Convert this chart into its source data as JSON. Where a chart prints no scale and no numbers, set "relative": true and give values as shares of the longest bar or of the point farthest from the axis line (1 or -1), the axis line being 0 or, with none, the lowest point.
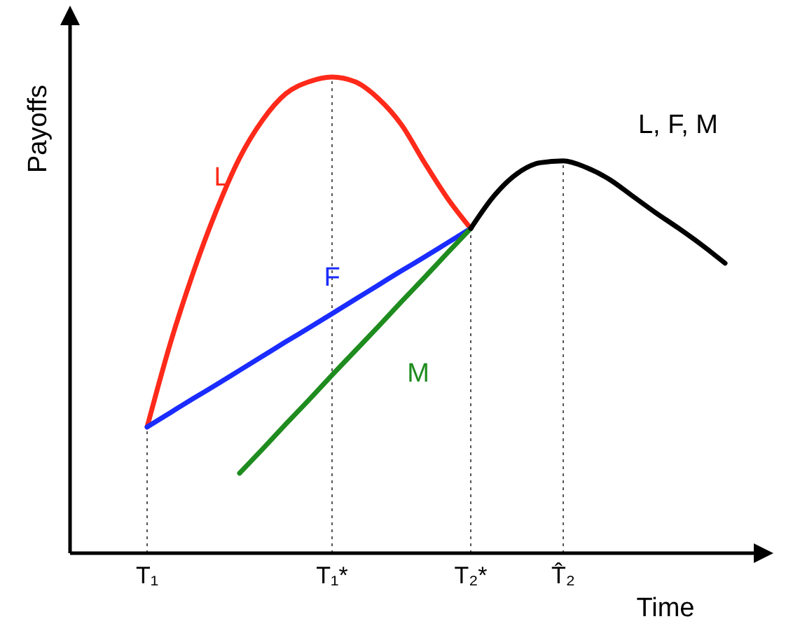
{
  "chart_data": {
    "type": "line",
    "relative": true,
    "xlabel": "Time",
    "ylabel": "Payoffs",
    "tick_labels": "x",
    "categories": [
      "T₁",
      null,
      null,
      null,
      null,
      null,
      null,
      null,
      "T₁*",
      null,
      null,
      null,
      null,
      null,
      "T₂*",
      null,
      null,
      null,
      "T̂₂",
      null,
      null,
      null,
      null,
      null,
      null,
      null
    ],
    "line_style": "solid",
    "marker": "none",
    "series": [
      {
        "name": "L",
        "color": "#ff2a1a",
        "values": [
          0.265,
          0.44,
          0.59,
          0.72,
          0.83,
          0.91,
          0.965,
          0.99,
          1,
          0.99,
          0.955,
          0.9,
          0.82,
          0.745,
          0.682,
          null,
          null,
          null,
          null,
          null,
          null,
          null,
          null,
          null,
          null,
          null
        ]
      },
      {
        "name": "F",
        "color": "#1a2cff",
        "values": [
          0.265,
          0.295,
          0.325,
          0.354,
          0.384,
          0.414,
          0.444,
          0.473,
          0.503,
          0.533,
          0.563,
          0.593,
          0.622,
          0.652,
          0.682,
          null,
          null,
          null,
          null,
          null,
          null,
          null,
          null,
          null,
          null,
          null
        ]
      },
      {
        "name": "M",
        "color": "#1e8c1e",
        "values": [
          null,
          null,
          null,
          null,
          0.168,
          0.219,
          0.271,
          0.322,
          0.374,
          0.425,
          0.476,
          0.528,
          0.579,
          0.631,
          0.682,
          null,
          null,
          null,
          null,
          null,
          null,
          null,
          null,
          null,
          null,
          null
        ]
      },
      {
        "name": "L, F, M",
        "color": "#000000",
        "values": [
          null,
          null,
          null,
          null,
          null,
          null,
          null,
          null,
          null,
          null,
          null,
          null,
          null,
          null,
          0.682,
          0.75,
          0.797,
          0.82,
          0.824,
          0.81,
          0.785,
          0.75,
          0.715,
          0.682,
          0.647,
          0.609
        ]
      }
    ],
    "ref_lines": [
      {
        "axis": "x",
        "value": "T₁",
        "line_style": "dotted",
        "color": "#555555"
      },
      {
        "axis": "x",
        "value": "T₁*",
        "line_style": "dotted",
        "color": "#555555"
      },
      {
        "axis": "x",
        "value": "T₂*",
        "line_style": "dotted",
        "color": "#555555"
      },
      {
        "axis": "x",
        "value": "T̂₂",
        "line_style": "dotted",
        "color": "#555555"
      }
    ]
  }
}
